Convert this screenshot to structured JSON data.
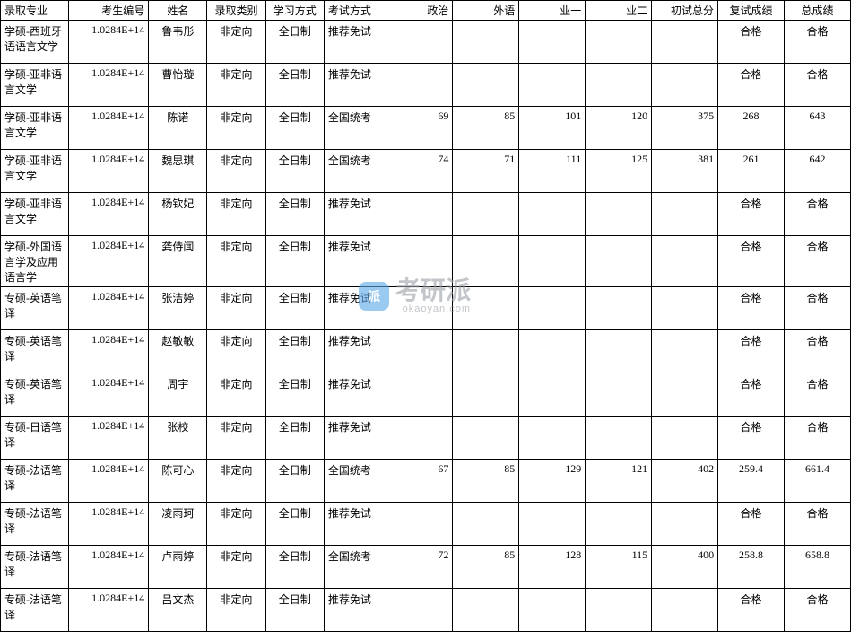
{
  "table": {
    "columns": [
      "录取专业",
      "考生编号",
      "姓名",
      "录取类别",
      "学习方式",
      "考试方式",
      "政治",
      "外语",
      "业一",
      "业二",
      "初试总分",
      "复试成绩",
      "总成绩"
    ],
    "col_classes": [
      "col-major",
      "col-id",
      "col-name",
      "col-type",
      "col-mode",
      "col-exam",
      "col-num",
      "col-num",
      "col-num",
      "col-num",
      "col-num",
      "col-result",
      "col-result"
    ],
    "rows": [
      [
        "学硕-西班牙语语言文学",
        "1.0284E+14",
        "鲁韦彤",
        "非定向",
        "全日制",
        "推荐免试",
        "",
        "",
        "",
        "",
        "",
        "合格",
        "合格"
      ],
      [
        "学硕-亚非语言文学",
        "1.0284E+14",
        "曹怡璇",
        "非定向",
        "全日制",
        "推荐免试",
        "",
        "",
        "",
        "",
        "",
        "合格",
        "合格"
      ],
      [
        "学硕-亚非语言文学",
        "1.0284E+14",
        "陈诺",
        "非定向",
        "全日制",
        "全国统考",
        "69",
        "85",
        "101",
        "120",
        "375",
        "268",
        "643"
      ],
      [
        "学硕-亚非语言文学",
        "1.0284E+14",
        "魏思琪",
        "非定向",
        "全日制",
        "全国统考",
        "74",
        "71",
        "111",
        "125",
        "381",
        "261",
        "642"
      ],
      [
        "学硕-亚非语言文学",
        "1.0284E+14",
        "杨钦妃",
        "非定向",
        "全日制",
        "推荐免试",
        "",
        "",
        "",
        "",
        "",
        "合格",
        "合格"
      ],
      [
        "学硕-外国语言学及应用语言学",
        "1.0284E+14",
        "龚侍闻",
        "非定向",
        "全日制",
        "推荐免试",
        "",
        "",
        "",
        "",
        "",
        "合格",
        "合格"
      ],
      [
        "专硕-英语笔译",
        "1.0284E+14",
        "张洁婷",
        "非定向",
        "全日制",
        "推荐免试",
        "",
        "",
        "",
        "",
        "",
        "合格",
        "合格"
      ],
      [
        "专硕-英语笔译",
        "1.0284E+14",
        "赵敏敏",
        "非定向",
        "全日制",
        "推荐免试",
        "",
        "",
        "",
        "",
        "",
        "合格",
        "合格"
      ],
      [
        "专硕-英语笔译",
        "1.0284E+14",
        "周宇",
        "非定向",
        "全日制",
        "推荐免试",
        "",
        "",
        "",
        "",
        "",
        "合格",
        "合格"
      ],
      [
        "专硕-日语笔译",
        "1.0284E+14",
        "张校",
        "非定向",
        "全日制",
        "推荐免试",
        "",
        "",
        "",
        "",
        "",
        "合格",
        "合格"
      ],
      [
        "专硕-法语笔译",
        "1.0284E+14",
        "陈可心",
        "非定向",
        "全日制",
        "全国统考",
        "67",
        "85",
        "129",
        "121",
        "402",
        "259.4",
        "661.4"
      ],
      [
        "专硕-法语笔译",
        "1.0284E+14",
        "凌雨珂",
        "非定向",
        "全日制",
        "推荐免试",
        "",
        "",
        "",
        "",
        "",
        "合格",
        "合格"
      ],
      [
        "专硕-法语笔译",
        "1.0284E+14",
        "卢雨婷",
        "非定向",
        "全日制",
        "全国统考",
        "72",
        "85",
        "128",
        "115",
        "400",
        "258.8",
        "658.8"
      ],
      [
        "专硕-法语笔译",
        "1.0284E+14",
        "吕文杰",
        "非定向",
        "全日制",
        "推荐免试",
        "",
        "",
        "",
        "",
        "",
        "合格",
        "合格"
      ]
    ],
    "border_color": "#000000",
    "bg_color": "#ffffff",
    "font_size": 12
  },
  "watermark": {
    "cn": "考研派",
    "en": "okaoyan.com",
    "badge": "派",
    "color_badge_bg": "#5aa7e8",
    "color_text": "#9aa0a6"
  }
}
